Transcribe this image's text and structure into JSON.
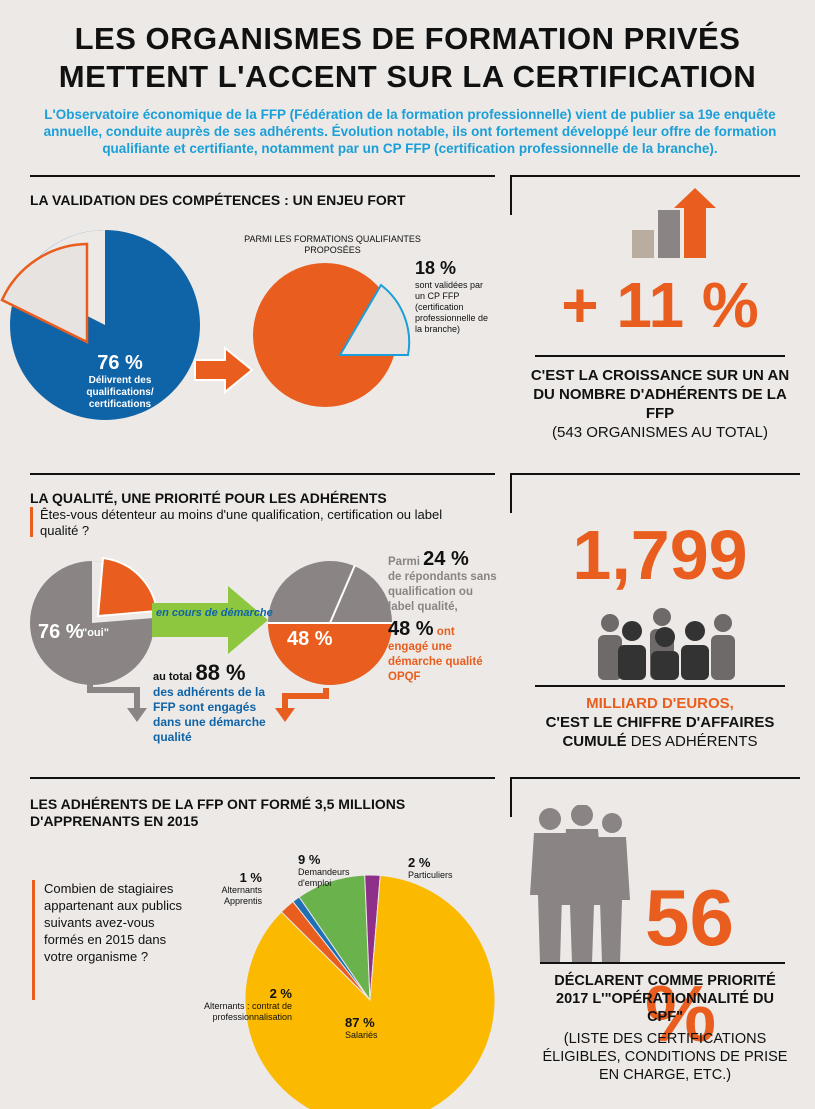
{
  "title": {
    "line1": "LES ORGANISMES DE FORMATION PRIVÉS",
    "line2": "METTENT L'ACCENT SUR LA CERTIFICATION"
  },
  "intro": "L'Observatoire économique de la FFP (Fédération de la formation professionnelle) vient de publier sa 19e enquête annuelle, conduite auprès de ses adhérents. Évolution notable, ils ont fortement développé leur offre de formation qualifiante et certifiante, notamment par un CP FFP (certification professionnelle de la branche).",
  "section1": {
    "heading": "LA VALIDATION DES COMPÉTENCES : UN ENJEU FORT",
    "pie1_value": "76 %",
    "pie1_label": "Délivrent des qualifications/ certifications",
    "pie2_caption": "PARMI LES FORMATIONS QUALIFIANTES PROPOSÉES",
    "pie2_value": "18 %",
    "pie2_label": "sont validées par un CP FFP (certification professionnelle de la branche)"
  },
  "section2": {
    "heading": "LA QUALITÉ, UNE PRIORITÉ POUR LES ADHÉRENTS",
    "question": "Êtes-vous détenteur au moins d'une qualification, certification ou label qualité ?",
    "pie_yes_value": "76 %",
    "pie_yes_label": "\"oui\"",
    "arrow_label": "en cours de démarche",
    "total_prefix": "au total",
    "total_value": "88 %",
    "total_label": "des adhérents de la FFP sont engagés dans une démarche qualité",
    "parmi_prefix": "Parmi",
    "parmi_value": "24 %",
    "parmi_label": "de répondants sans qualification ou label qualité,",
    "pie2_value": "48 %",
    "engaged_value": "48 %",
    "engaged_label": "ont engagé une démarche qualité OPQF"
  },
  "section3": {
    "heading_line1": "LES ADHÉRENTS DE LA FFP ONT FORMÉ 3,5 MILLIONS",
    "heading_line2": "D'APPRENANTS EN 2015",
    "question": "Combien de stagiaires appartenant aux publics suivants avez-vous formés en 2015 dans votre organisme ?"
  },
  "chart_data": [
    {
      "type": "pie",
      "title": "",
      "values": [
        {
          "label": "Délivrent des qualifications/ certifications",
          "value": 76
        },
        {
          "label": "",
          "value": 24
        }
      ]
    },
    {
      "type": "pie",
      "title": "PARMI LES FORMATIONS QUALIFIANTES PROPOSÉES",
      "values": [
        {
          "label": "sont validées par un CP FFP (certification professionnelle de la branche)",
          "value": 18
        },
        {
          "label": "",
          "value": 82
        }
      ]
    },
    {
      "type": "pie",
      "title": "",
      "values": [
        {
          "label": "\"oui\"",
          "value": 76
        },
        {
          "label": "en cours de démarche",
          "value": 24
        }
      ]
    },
    {
      "type": "pie",
      "title": "",
      "values": [
        {
          "label": "ont engagé une démarche qualité OPQF",
          "value": 48
        },
        {
          "label": "",
          "value": 52
        }
      ]
    },
    {
      "type": "pie",
      "title": "LES ADHÉRENTS DE LA FFP ONT FORMÉ 3,5 MILLIONS D'APPRENANTS EN 2015",
      "slices": [
        {
          "label": "Salariés",
          "value": 87,
          "value_text": "87 %",
          "color": "#fbb900"
        },
        {
          "label": "Alternants : contrat de professionnalisation",
          "value": 2,
          "value_text": "2 %",
          "color": "#e95e1f"
        },
        {
          "label": "Alternants Apprentis",
          "value": 1,
          "value_text": "1 %",
          "color": "#1e6fb6"
        },
        {
          "label": "Demandeurs d'emploi",
          "value": 9,
          "value_text": "9 %",
          "color": "#6ab24c"
        },
        {
          "label": "Particuliers",
          "value": 2,
          "value_text": "2 %",
          "color": "#8e2f8a"
        }
      ]
    }
  ],
  "side": {
    "growth_value": "+ 11 %",
    "growth_text1": "C'EST LA CROISSANCE SUR UN AN DU NOMBRE D'ADHÉRENTS DE LA FFP",
    "growth_text2": "(543 ORGANISMES AU TOTAL)",
    "revenue_value": "1,799",
    "revenue_text1": "MILLIARD D'EUROS,",
    "revenue_text2": "C'EST LE CHIFFRE D'AFFAIRES",
    "revenue_text3a": "CUMULÉ",
    "revenue_text3b": " DES ADHÉRENTS",
    "priority_value": "56 %",
    "priority_text1": "DÉCLARENT COMME PRIORITÉ 2017 L'\"OPÉRATIONNALITÉ DU CPF\"",
    "priority_text2": "(LISTE DES CERTIFICATIONS ÉLIGIBLES, CONDITIONS DE PRISE EN CHARGE, ETC.)"
  },
  "colors": {
    "orange": "#e95e1f",
    "blue": "#0f63a7",
    "grey": "#8a8484",
    "green": "#6ab24c",
    "yellow": "#fbb900",
    "purple": "#8e2f8a"
  }
}
